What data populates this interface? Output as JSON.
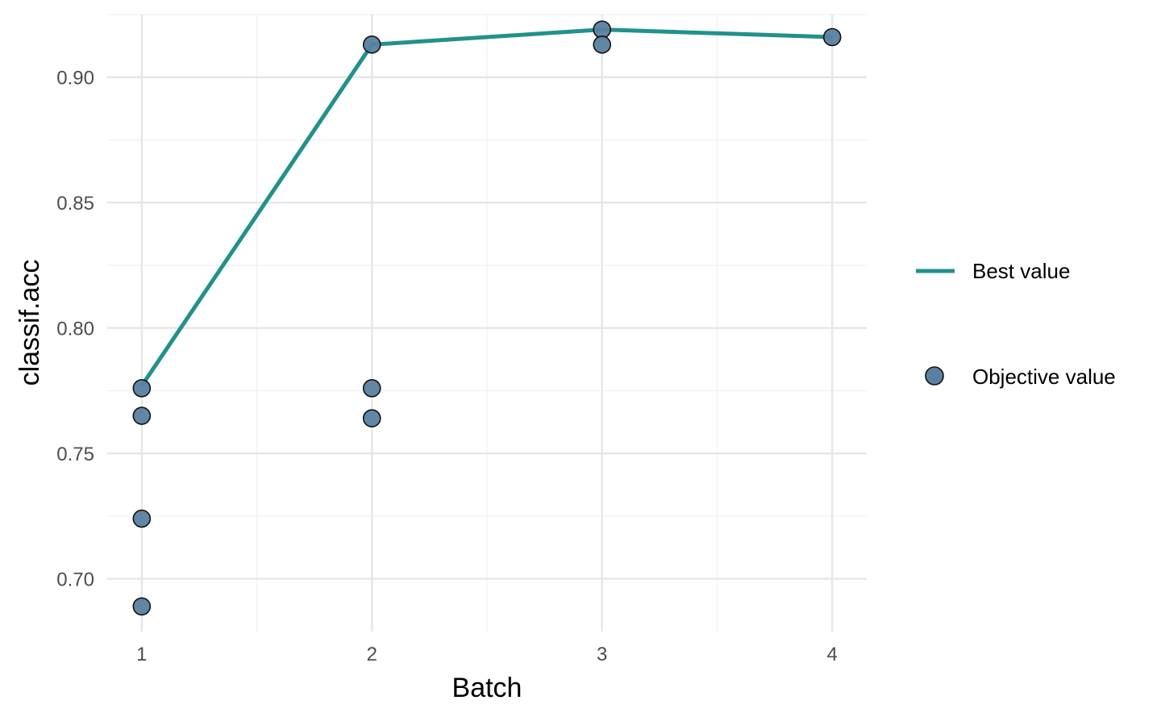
{
  "chart_data": {
    "type": "line",
    "xlabel": "Batch",
    "ylabel": "classif.acc",
    "xlim": [
      0.85,
      4.15
    ],
    "ylim": [
      0.679,
      0.925
    ],
    "x_ticks": [
      1,
      2,
      3,
      4
    ],
    "x_tick_labels": [
      "1",
      "2",
      "3",
      "4"
    ],
    "y_ticks": [
      0.7,
      0.75,
      0.8,
      0.85,
      0.9
    ],
    "y_tick_labels": [
      "0.70",
      "0.75",
      "0.80",
      "0.85",
      "0.90"
    ],
    "y_minor_ticks": [
      0.725,
      0.775,
      0.825,
      0.875,
      0.925
    ],
    "x_minor_ticks": [
      1.5,
      2.5,
      3.5
    ],
    "grid": true,
    "legend_position": "right",
    "series": [
      {
        "name": "Best value",
        "kind": "line",
        "color": "#21918c",
        "x": [
          1,
          2,
          3,
          4
        ],
        "y": [
          0.777,
          0.913,
          0.919,
          0.916
        ]
      },
      {
        "name": "Objective value",
        "kind": "scatter",
        "color": "#5a7fa0",
        "x": [
          1,
          1,
          1,
          1,
          2,
          2,
          2,
          3,
          3,
          4
        ],
        "y": [
          0.776,
          0.765,
          0.724,
          0.689,
          0.913,
          0.776,
          0.764,
          0.919,
          0.913,
          0.916
        ]
      }
    ],
    "legend": {
      "line_label": "Best value",
      "point_label": "Objective value"
    }
  }
}
